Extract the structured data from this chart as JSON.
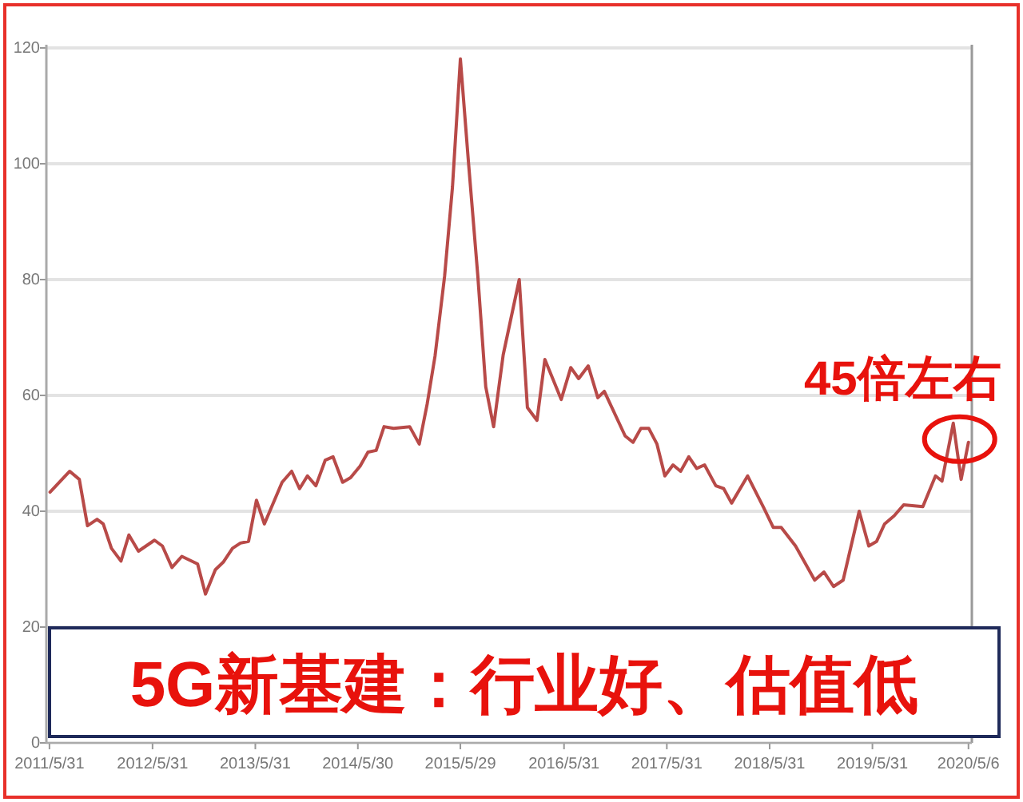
{
  "chart_data": {
    "type": "line",
    "x": [
      "2011-06-02",
      "2011-08-11",
      "2011-09-14",
      "2011-10-13",
      "2011-11-16",
      "2011-12-08",
      "2012-01-06",
      "2012-02-09",
      "2012-03-08",
      "2012-04-11",
      "2012-06-07",
      "2012-07-05",
      "2012-08-08",
      "2012-09-12",
      "2012-11-07",
      "2012-12-05",
      "2013-01-09",
      "2013-02-06",
      "2013-03-11",
      "2013-04-08",
      "2013-05-07",
      "2013-06-04",
      "2013-07-02",
      "2013-09-03",
      "2013-10-07",
      "2013-11-04",
      "2013-12-02",
      "2014-01-01",
      "2014-02-03",
      "2014-03-03",
      "2014-04-06",
      "2014-05-04",
      "2014-06-07",
      "2014-07-05",
      "2014-08-03",
      "2014-08-31",
      "2014-10-04",
      "2014-11-30",
      "2015-01-03",
      "2015-01-31",
      "2015-02-28",
      "2015-04-03",
      "2015-05-01",
      "2015-05-29",
      "2015-06-26",
      "2015-07-30",
      "2015-08-27",
      "2015-09-24",
      "2015-10-28",
      "2015-12-24",
      "2016-01-22",
      "2016-02-25",
      "2016-03-24",
      "2016-05-21",
      "2016-06-24",
      "2016-07-22",
      "2016-08-25",
      "2016-09-28",
      "2016-10-21",
      "2017-01-03",
      "2017-01-31",
      "2017-02-28",
      "2017-03-28",
      "2017-04-26",
      "2017-05-24",
      "2017-06-22",
      "2017-07-19",
      "2017-08-17",
      "2017-09-14",
      "2017-10-12",
      "2017-11-21",
      "2017-12-19",
      "2018-01-16",
      "2018-03-14",
      "2018-05-10",
      "2018-06-13",
      "2018-07-11",
      "2018-08-31",
      "2018-11-07",
      "2018-12-10",
      "2019-01-13",
      "2019-02-16",
      "2019-04-14",
      "2019-05-18",
      "2019-06-15",
      "2019-07-13",
      "2019-08-16",
      "2019-09-19",
      "2019-11-26",
      "2020-01-10",
      "2020-02-02",
      "2020-03-13",
      "2020-04-10",
      "2020-05-06"
    ],
    "series": [
      {
        "color": "#b84a48",
        "values": [
          43.3,
          46.9,
          45.5,
          37.5,
          38.6,
          37.8,
          33.6,
          31.4,
          35.9,
          33.1,
          35.0,
          34.0,
          30.3,
          32.2,
          30.9,
          25.7,
          29.9,
          31.2,
          33.6,
          34.5,
          34.8,
          41.9,
          37.8,
          45.0,
          46.9,
          43.9,
          46.1,
          44.4,
          48.8,
          49.4,
          45.0,
          45.8,
          47.8,
          50.2,
          50.5,
          54.6,
          54.3,
          54.6,
          51.6,
          58.5,
          66.8,
          80.6,
          96.0,
          118.1,
          100.7,
          80.6,
          61.5,
          54.6,
          67.0,
          80.0,
          57.9,
          55.7,
          66.2,
          59.3,
          64.8,
          62.9,
          65.1,
          59.6,
          60.7,
          53.0,
          51.9,
          54.3,
          54.3,
          51.6,
          46.1,
          48.0,
          46.9,
          49.4,
          47.4,
          48.0,
          44.4,
          43.9,
          41.4,
          46.1,
          40.6,
          37.2,
          37.2,
          34.0,
          28.1,
          29.5,
          27.0,
          28.1,
          40.0,
          34.0,
          34.8,
          37.8,
          39.2,
          41.1,
          40.8,
          46.1,
          45.2,
          55.2,
          45.5,
          51.9
        ]
      }
    ],
    "xlim": [
      "2011-05-20",
      "2020-05-18"
    ],
    "xticks": [
      {
        "value": "2011-05-31",
        "label": "2011/5/31"
      },
      {
        "value": "2012-05-31",
        "label": "2012/5/31"
      },
      {
        "value": "2013-05-31",
        "label": "2013/5/31"
      },
      {
        "value": "2014-05-30",
        "label": "2014/5/30"
      },
      {
        "value": "2015-05-29",
        "label": "2015/5/29"
      },
      {
        "value": "2016-05-31",
        "label": "2016/5/31"
      },
      {
        "value": "2017-05-31",
        "label": "2017/5/31"
      },
      {
        "value": "2018-05-31",
        "label": "2018/5/31"
      },
      {
        "value": "2019-05-31",
        "label": "2019/5/31"
      },
      {
        "value": "2020-05-06",
        "label": "2020/5/6"
      }
    ],
    "ylim": [
      0,
      120
    ],
    "yticks": [
      0,
      20,
      40,
      60,
      80,
      100,
      120
    ],
    "grid": "y",
    "annotations": [
      {
        "text": "45倍左右",
        "x": "2020-03-13",
        "y": 55.2
      },
      "5G新基建：行业好、估值低"
    ]
  }
}
